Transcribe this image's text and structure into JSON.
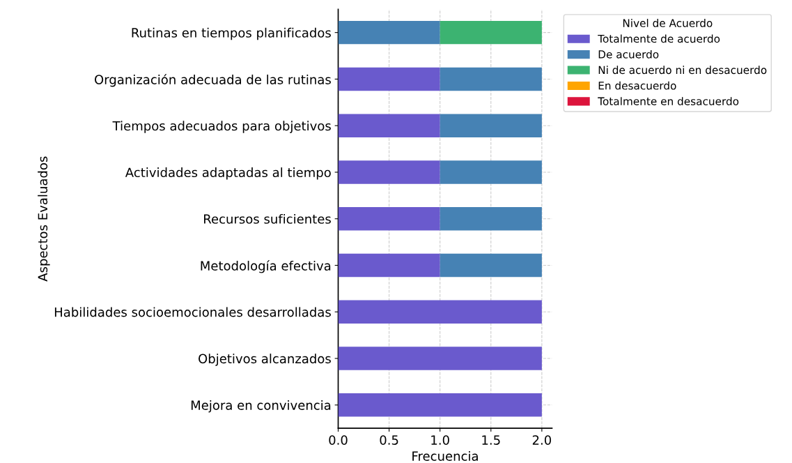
{
  "chart_data": {
    "type": "bar",
    "orientation": "horizontal",
    "stacked": true,
    "xlabel": "Frecuencia",
    "ylabel": "Aspectos Evaluados",
    "legend_title": "Nivel de Acuerdo",
    "categories": [
      "Rutinas en tiempos planificados",
      "Organización adecuada de las rutinas",
      "Tiempos adecuados para objetivos",
      "Actividades adaptadas al tiempo",
      "Recursos suficientes",
      "Metodología efectiva",
      "Habilidades socioemocionales desarrolladas",
      "Objetivos alcanzados",
      "Mejora en convivencia"
    ],
    "series": [
      {
        "name": "Totalmente de acuerdo",
        "color": "#6a5acd",
        "values": [
          0,
          1,
          1,
          1,
          1,
          1,
          2,
          2,
          2
        ]
      },
      {
        "name": "De acuerdo",
        "color": "#4682b4",
        "values": [
          1,
          1,
          1,
          1,
          1,
          1,
          0,
          0,
          0
        ]
      },
      {
        "name": "Ni de acuerdo ni en desacuerdo",
        "color": "#3cb371",
        "values": [
          1,
          0,
          0,
          0,
          0,
          0,
          0,
          0,
          0
        ]
      },
      {
        "name": "En desacuerdo",
        "color": "#ffa500",
        "values": [
          0,
          0,
          0,
          0,
          0,
          0,
          0,
          0,
          0
        ]
      },
      {
        "name": "Totalmente en desacuerdo",
        "color": "#dc143c",
        "values": [
          0,
          0,
          0,
          0,
          0,
          0,
          0,
          0,
          0
        ]
      }
    ],
    "xlim": [
      0,
      2.1
    ],
    "xticks": [
      {
        "value": 0,
        "label": "0.0"
      },
      {
        "value": 0.5,
        "label": "0.5"
      },
      {
        "value": 1,
        "label": "1.0"
      },
      {
        "value": 1.5,
        "label": "1.5"
      },
      {
        "value": 2,
        "label": "2.0"
      }
    ],
    "grid": true,
    "legend": "top right"
  }
}
